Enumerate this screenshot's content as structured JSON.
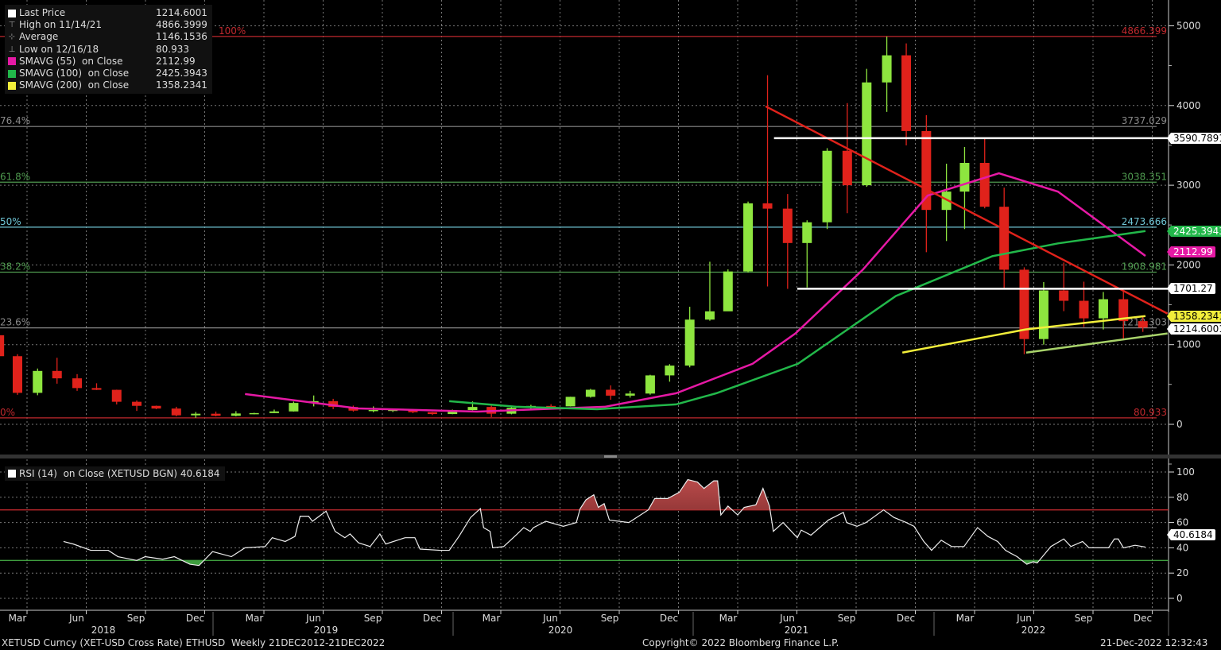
{
  "chart_data": [
    {
      "type": "candlestick",
      "title": "",
      "ylim": [
        0,
        5000
      ],
      "y_ticks": [
        "5000",
        "4000",
        "3000",
        "2000",
        "1000",
        "0"
      ],
      "x_month_labels": [
        "Mar",
        "Jun",
        "Sep",
        "Dec",
        "Mar",
        "Jun",
        "Sep",
        "Dec",
        "Mar",
        "Jun",
        "Sep",
        "Dec",
        "Mar",
        "Jun",
        "Sep",
        "Dec",
        "Mar",
        "Jun",
        "Sep",
        "Dec"
      ],
      "x_year_labels": [
        "2018",
        "2019",
        "2020",
        "2021",
        "2022"
      ],
      "grid": true,
      "legend_position": "top-left",
      "legend": [
        {
          "label": "Last Price",
          "value": "1214.6001",
          "marker": "square",
          "color": "#ffffff"
        },
        {
          "label": "High on 11/14/21",
          "value": "4866.3999",
          "marker": "high-icon"
        },
        {
          "label": "Average",
          "value": "1146.1536",
          "marker": "average-icon"
        },
        {
          "label": "Low on 12/16/18",
          "value": "80.933",
          "marker": "low-icon"
        },
        {
          "label": "SMAVG (55)  on Close",
          "value": "2112.99",
          "marker": "square",
          "color": "#e619a5"
        },
        {
          "label": "SMAVG (100)  on Close",
          "value": "2425.3943",
          "marker": "square",
          "color": "#22b84a"
        },
        {
          "label": "SMAVG (200)  on Close",
          "value": "1358.2341",
          "marker": "square",
          "color": "#f2ee3a"
        }
      ],
      "candles": [
        [
          "2018-02-15",
          1118,
          1160,
          570,
          855
        ],
        [
          "2018-03-15",
          855,
          880,
          370,
          395
        ],
        [
          "2018-04-15",
          395,
          700,
          365,
          670
        ],
        [
          "2018-05-15",
          670,
          835,
          510,
          577
        ],
        [
          "2018-06-15",
          577,
          630,
          420,
          455
        ],
        [
          "2018-07-15",
          455,
          515,
          430,
          433
        ],
        [
          "2018-08-15",
          433,
          435,
          250,
          283
        ],
        [
          "2018-09-15",
          283,
          300,
          168,
          232
        ],
        [
          "2018-10-15",
          232,
          235,
          190,
          198
        ],
        [
          "2018-11-15",
          198,
          220,
          100,
          113
        ],
        [
          "2018-12-15",
          113,
          155,
          81,
          133
        ],
        [
          "2019-01-15",
          133,
          160,
          100,
          107
        ],
        [
          "2019-02-15",
          107,
          165,
          100,
          136
        ],
        [
          "2019-03-15",
          136,
          145,
          125,
          141
        ],
        [
          "2019-04-15",
          141,
          185,
          140,
          162
        ],
        [
          "2019-05-15",
          162,
          285,
          160,
          268
        ],
        [
          "2019-06-15",
          268,
          362,
          225,
          291
        ],
        [
          "2019-07-15",
          291,
          320,
          190,
          218
        ],
        [
          "2019-08-15",
          218,
          235,
          160,
          172
        ],
        [
          "2019-09-15",
          172,
          225,
          152,
          180
        ],
        [
          "2019-10-15",
          180,
          198,
          155,
          182
        ],
        [
          "2019-11-15",
          182,
          190,
          140,
          152
        ],
        [
          "2019-12-15",
          152,
          155,
          117,
          129
        ],
        [
          "2020-01-15",
          129,
          185,
          127,
          179
        ],
        [
          "2020-02-15",
          179,
          288,
          176,
          218
        ],
        [
          "2020-03-15",
          218,
          252,
          90,
          133
        ],
        [
          "2020-04-15",
          133,
          227,
          125,
          207
        ],
        [
          "2020-05-15",
          207,
          245,
          177,
          231
        ],
        [
          "2020-06-15",
          231,
          253,
          215,
          226
        ],
        [
          "2020-07-15",
          226,
          346,
          224,
          345
        ],
        [
          "2020-08-15",
          345,
          445,
          335,
          434
        ],
        [
          "2020-09-15",
          434,
          488,
          308,
          360
        ],
        [
          "2020-10-15",
          360,
          420,
          335,
          386
        ],
        [
          "2020-11-15",
          386,
          622,
          372,
          614
        ],
        [
          "2020-12-15",
          614,
          755,
          535,
          737
        ],
        [
          "2021-01-15",
          737,
          1475,
          715,
          1314
        ],
        [
          "2021-02-15",
          1314,
          2040,
          1300,
          1418
        ],
        [
          "2021-03-15",
          1418,
          1945,
          1450,
          1918
        ],
        [
          "2021-04-15",
          1918,
          2795,
          1905,
          2773
        ],
        [
          "2021-05-15",
          2773,
          4380,
          1730,
          2706
        ],
        [
          "2021-06-15",
          2706,
          2890,
          1700,
          2275
        ],
        [
          "2021-07-15",
          2275,
          2560,
          1717,
          2535
        ],
        [
          "2021-08-15",
          2535,
          3465,
          2450,
          3432
        ],
        [
          "2021-09-15",
          3432,
          4030,
          2650,
          3000
        ],
        [
          "2021-10-15",
          3000,
          4460,
          2980,
          4290
        ],
        [
          "2021-11-15",
          4290,
          4866.3999,
          3920,
          4630
        ],
        [
          "2021-12-15",
          4630,
          4780,
          3500,
          3680
        ],
        [
          "2022-01-15",
          3680,
          3880,
          2160,
          2690
        ],
        [
          "2022-02-15",
          2690,
          3270,
          2300,
          2920
        ],
        [
          "2022-03-15",
          2920,
          3480,
          2450,
          3280
        ],
        [
          "2022-04-15",
          3280,
          3580,
          2710,
          2730
        ],
        [
          "2022-05-15",
          2730,
          2970,
          1700,
          1940
        ],
        [
          "2022-06-15",
          1940,
          1970,
          880,
          1070
        ],
        [
          "2022-07-15",
          1070,
          1785,
          1000,
          1680
        ],
        [
          "2022-08-15",
          1680,
          2030,
          1420,
          1550
        ],
        [
          "2022-09-15",
          1550,
          1790,
          1220,
          1330
        ],
        [
          "2022-10-15",
          1330,
          1660,
          1190,
          1570
        ],
        [
          "2022-11-15",
          1570,
          1680,
          1075,
          1295
        ],
        [
          "2022-12-15",
          1295,
          1350,
          1160,
          1214.6001
        ]
      ],
      "series": [
        {
          "name": "SMAVG (55)",
          "color": "#e619a5",
          "points": [
            [
              "2019-03-01",
              380
            ],
            [
              "2019-08-22",
              200
            ],
            [
              "2020-02-22",
              160
            ],
            [
              "2020-09-06",
              220
            ],
            [
              "2020-12-25",
              390
            ],
            [
              "2021-04-22",
              760
            ],
            [
              "2021-06-27",
              1140
            ],
            [
              "2021-10-09",
              1940
            ],
            [
              "2022-01-17",
              2870
            ],
            [
              "2022-05-07",
              3150
            ],
            [
              "2022-08-06",
              2920
            ],
            [
              "2022-12-19",
              2112.99
            ]
          ]
        },
        {
          "name": "SMAVG (100)",
          "color": "#22b84a",
          "points": [
            [
              "2020-01-10",
              290
            ],
            [
              "2020-04-24",
              220
            ],
            [
              "2020-08-25",
              190
            ],
            [
              "2020-12-25",
              250
            ],
            [
              "2021-02-25",
              390
            ],
            [
              "2021-07-01",
              760
            ],
            [
              "2021-11-29",
              1610
            ],
            [
              "2022-04-27",
              2110
            ],
            [
              "2022-08-06",
              2270
            ],
            [
              "2022-12-19",
              2425.3943
            ]
          ]
        },
        {
          "name": "SMAVG (200)",
          "color": "#f2ee3a",
          "points": [
            [
              "2021-12-09",
              900
            ],
            [
              "2022-06-17",
              1190
            ],
            [
              "2022-12-19",
              1358.2341
            ]
          ]
        }
      ],
      "fibonacci": [
        {
          "label": "100%",
          "value": "4866.399",
          "color": "#c0282d"
        },
        {
          "label": "76.4%",
          "value": "3737.029",
          "color": "#8a8a8a"
        },
        {
          "label": "61.8%",
          "value": "3038.351",
          "color": "#4f9a4f"
        },
        {
          "label": "50%",
          "value": "2473.666",
          "color": "#6fc6d6"
        },
        {
          "label": "38.2%",
          "value": "1908.981",
          "color": "#4f9a4f"
        },
        {
          "label": "23.6%",
          "value": "1210.303",
          "color": "#8a8a8a"
        },
        {
          "label": "0%",
          "value": "80.933",
          "color": "#c0282d"
        }
      ],
      "trendlines": [
        {
          "color": "#e0221b",
          "from": [
            "2021-05-12",
            3990
          ],
          "to": [
            "2023-01-22",
            1390
          ]
        },
        {
          "color": "#ffffff",
          "from": [
            "2021-05-25",
            3590.7891
          ],
          "to": [
            "2023-01-25",
            3590.7891
          ]
        },
        {
          "color": "#ffffff",
          "from": [
            "2021-06-30",
            1701.27
          ],
          "to": [
            "2023-01-25",
            1701.27
          ]
        },
        {
          "color": "#a8d36a",
          "from": [
            "2022-06-18",
            900
          ],
          "to": [
            "2023-01-22",
            1140
          ]
        }
      ],
      "price_tags": [
        {
          "value": "3590.7891",
          "bg": "#ffffff",
          "fg": "#000000"
        },
        {
          "value": "2425.3943",
          "bg": "#22b84a",
          "fg": "#ffffff"
        },
        {
          "value": "2112.99",
          "bg": "#e619a5",
          "fg": "#ffffff"
        },
        {
          "value": "1701.27",
          "bg": "#ffffff",
          "fg": "#000000"
        },
        {
          "value": "1358.2341",
          "bg": "#f2ee3a",
          "fg": "#000000"
        },
        {
          "value": "1214.6001",
          "bg": "#ffffff",
          "fg": "#000000"
        }
      ]
    },
    {
      "type": "line",
      "legend_label": "RSI (14)  on Close (XETUSD BGN) 40.6184",
      "ylim": [
        0,
        110
      ],
      "y_ticks": [
        "100",
        "80",
        "60",
        "40",
        "20",
        "0"
      ],
      "overbought": 70,
      "oversold": 30,
      "last_value": "40.6184",
      "points": [
        [
          "2018-05-25",
          45
        ],
        [
          "2018-06-09",
          43
        ],
        [
          "2018-07-06",
          38
        ],
        [
          "2018-08-02",
          38
        ],
        [
          "2018-08-17",
          33
        ],
        [
          "2018-09-15",
          30
        ],
        [
          "2018-09-28",
          33
        ],
        [
          "2018-10-25",
          31
        ],
        [
          "2018-11-12",
          33
        ],
        [
          "2018-12-06",
          27
        ],
        [
          "2018-12-20",
          26
        ],
        [
          "2019-01-10",
          37
        ],
        [
          "2019-02-08",
          33
        ],
        [
          "2019-03-01",
          40
        ],
        [
          "2019-04-01",
          41
        ],
        [
          "2019-04-12",
          48
        ],
        [
          "2019-05-02",
          45
        ],
        [
          "2019-05-17",
          49
        ],
        [
          "2019-05-25",
          65
        ],
        [
          "2019-06-07",
          65
        ],
        [
          "2019-06-13",
          61
        ],
        [
          "2019-07-04",
          69
        ],
        [
          "2019-07-18",
          53
        ],
        [
          "2019-08-02",
          48
        ],
        [
          "2019-08-10",
          51
        ],
        [
          "2019-08-23",
          44
        ],
        [
          "2019-09-10",
          41
        ],
        [
          "2019-09-25",
          51
        ],
        [
          "2019-10-04",
          43
        ],
        [
          "2019-11-03",
          48
        ],
        [
          "2019-11-18",
          48
        ],
        [
          "2019-11-26",
          39
        ],
        [
          "2019-12-27",
          38
        ],
        [
          "2020-01-10",
          38
        ],
        [
          "2020-01-25",
          49
        ],
        [
          "2020-02-12",
          64
        ],
        [
          "2020-02-27",
          71
        ],
        [
          "2020-03-03",
          56
        ],
        [
          "2020-03-13",
          53
        ],
        [
          "2020-03-17",
          40
        ],
        [
          "2020-04-03",
          41
        ],
        [
          "2020-04-24",
          51
        ],
        [
          "2020-05-04",
          56
        ],
        [
          "2020-05-14",
          53
        ],
        [
          "2020-05-19",
          56
        ],
        [
          "2020-06-07",
          61
        ],
        [
          "2020-07-04",
          57
        ],
        [
          "2020-07-24",
          60
        ],
        [
          "2020-07-30",
          71
        ],
        [
          "2020-08-08",
          78
        ],
        [
          "2020-08-20",
          82
        ],
        [
          "2020-08-27",
          72
        ],
        [
          "2020-09-05",
          75
        ],
        [
          "2020-09-13",
          62
        ],
        [
          "2020-10-13",
          60
        ],
        [
          "2020-11-12",
          70
        ],
        [
          "2020-11-22",
          79
        ],
        [
          "2020-12-12",
          79
        ],
        [
          "2020-12-30",
          84
        ],
        [
          "2021-01-12",
          94
        ],
        [
          "2021-01-27",
          92
        ],
        [
          "2021-02-06",
          87
        ],
        [
          "2021-02-21",
          93
        ],
        [
          "2021-02-27",
          93
        ],
        [
          "2021-03-04",
          66
        ],
        [
          "2021-03-15",
          73
        ],
        [
          "2021-03-30",
          66
        ],
        [
          "2021-04-09",
          72
        ],
        [
          "2021-04-27",
          74
        ],
        [
          "2021-05-08",
          87
        ],
        [
          "2021-05-18",
          73
        ],
        [
          "2021-05-24",
          53
        ],
        [
          "2021-06-08",
          60
        ],
        [
          "2021-06-30",
          48
        ],
        [
          "2021-07-06",
          54
        ],
        [
          "2021-07-21",
          50
        ],
        [
          "2021-08-17",
          62
        ],
        [
          "2021-09-09",
          68
        ],
        [
          "2021-09-14",
          60
        ],
        [
          "2021-09-30",
          57
        ],
        [
          "2021-10-14",
          60
        ],
        [
          "2021-11-10",
          70
        ],
        [
          "2021-11-26",
          64
        ],
        [
          "2021-12-15",
          60
        ],
        [
          "2021-12-27",
          57
        ],
        [
          "2022-01-11",
          45
        ],
        [
          "2022-01-23",
          38
        ],
        [
          "2022-02-07",
          46
        ],
        [
          "2022-02-23",
          41
        ],
        [
          "2022-03-14",
          41
        ],
        [
          "2022-04-04",
          56
        ],
        [
          "2022-04-20",
          49
        ],
        [
          "2022-05-05",
          45
        ],
        [
          "2022-05-17",
          38
        ],
        [
          "2022-06-04",
          33
        ],
        [
          "2022-06-19",
          27
        ],
        [
          "2022-06-29",
          29
        ],
        [
          "2022-07-05",
          28
        ],
        [
          "2022-07-26",
          41
        ],
        [
          "2022-08-15",
          47
        ],
        [
          "2022-08-26",
          41
        ],
        [
          "2022-09-13",
          45
        ],
        [
          "2022-09-23",
          40
        ],
        [
          "2022-10-23",
          40
        ],
        [
          "2022-11-01",
          47
        ],
        [
          "2022-11-07",
          47
        ],
        [
          "2022-11-15",
          40
        ],
        [
          "2022-12-03",
          42
        ],
        [
          "2022-12-19",
          40.6184
        ]
      ]
    }
  ],
  "colors": {
    "up": "#8ee53f",
    "down": "#e0221b",
    "background": "#000000"
  },
  "footer": {
    "security": "XETUSD Curncy (XET-USD Cross Rate) ETHUSD  Weekly 21DEC2012-21DEC2022",
    "copyright": "Copyright© 2022 Bloomberg Finance L.P.",
    "timestamp": "21-Dec-2022 12:32:43"
  }
}
